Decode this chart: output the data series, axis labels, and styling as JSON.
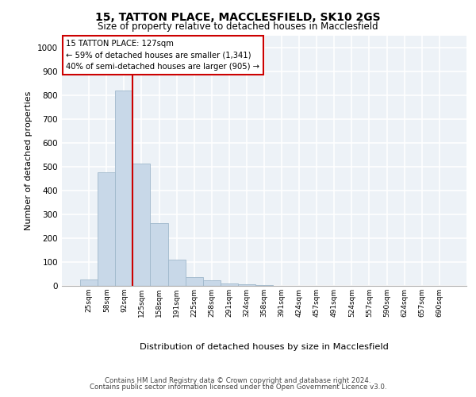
{
  "title1": "15, TATTON PLACE, MACCLESFIELD, SK10 2GS",
  "title2": "Size of property relative to detached houses in Macclesfield",
  "xlabel": "Distribution of detached houses by size in Macclesfield",
  "ylabel": "Number of detached properties",
  "bar_labels": [
    "25sqm",
    "58sqm",
    "92sqm",
    "125sqm",
    "158sqm",
    "191sqm",
    "225sqm",
    "258sqm",
    "291sqm",
    "324sqm",
    "358sqm",
    "391sqm",
    "424sqm",
    "457sqm",
    "491sqm",
    "524sqm",
    "557sqm",
    "590sqm",
    "624sqm",
    "657sqm",
    "690sqm"
  ],
  "bar_values": [
    28,
    478,
    820,
    515,
    265,
    110,
    38,
    22,
    10,
    8,
    4,
    0,
    0,
    0,
    0,
    0,
    0,
    0,
    0,
    0,
    0
  ],
  "bar_color": "#c8d8e8",
  "bar_edgecolor": "#a0b8cc",
  "ylim": [
    0,
    1050
  ],
  "yticks": [
    0,
    100,
    200,
    300,
    400,
    500,
    600,
    700,
    800,
    900,
    1000
  ],
  "property_line_index": 3,
  "property_line_color": "#cc0000",
  "annotation_text": "15 TATTON PLACE: 127sqm\n← 59% of detached houses are smaller (1,341)\n40% of semi-detached houses are larger (905) →",
  "annotation_box_color": "#cc0000",
  "footer1": "Contains HM Land Registry data © Crown copyright and database right 2024.",
  "footer2": "Contains public sector information licensed under the Open Government Licence v3.0.",
  "bg_color": "#edf2f7",
  "grid_color": "#ffffff"
}
